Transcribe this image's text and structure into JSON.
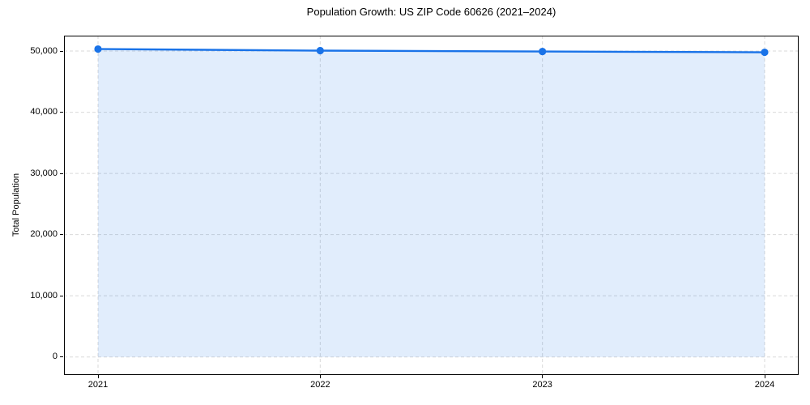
{
  "chart_data": {
    "type": "area",
    "title": "Population Growth: US ZIP Code 60626 (2021–2024)",
    "xlabel": "",
    "ylabel": "Total Population",
    "categories": [
      "2021",
      "2022",
      "2023",
      "2024"
    ],
    "series": [
      {
        "name": "Total Population",
        "values": [
          50330,
          50070,
          49930,
          49800
        ]
      }
    ],
    "y_ticks": [
      {
        "value": 0,
        "label": "0"
      },
      {
        "value": 10000,
        "label": "10,000"
      },
      {
        "value": 20000,
        "label": "20,000"
      },
      {
        "value": 30000,
        "label": "30,000"
      },
      {
        "value": 40000,
        "label": "40,000"
      },
      {
        "value": 50000,
        "label": "50,000"
      }
    ],
    "ylim": [
      -2950,
      52520
    ],
    "grid": true,
    "grid_style": "dashed",
    "legend_position": "none",
    "colors": {
      "line": "#1a73e8",
      "marker": "#1a73e8",
      "fill": "#1a73e8",
      "fill_opacity": 0.13,
      "grid": "#d9d9d9",
      "spine": "#000000",
      "text": "#000000"
    }
  }
}
